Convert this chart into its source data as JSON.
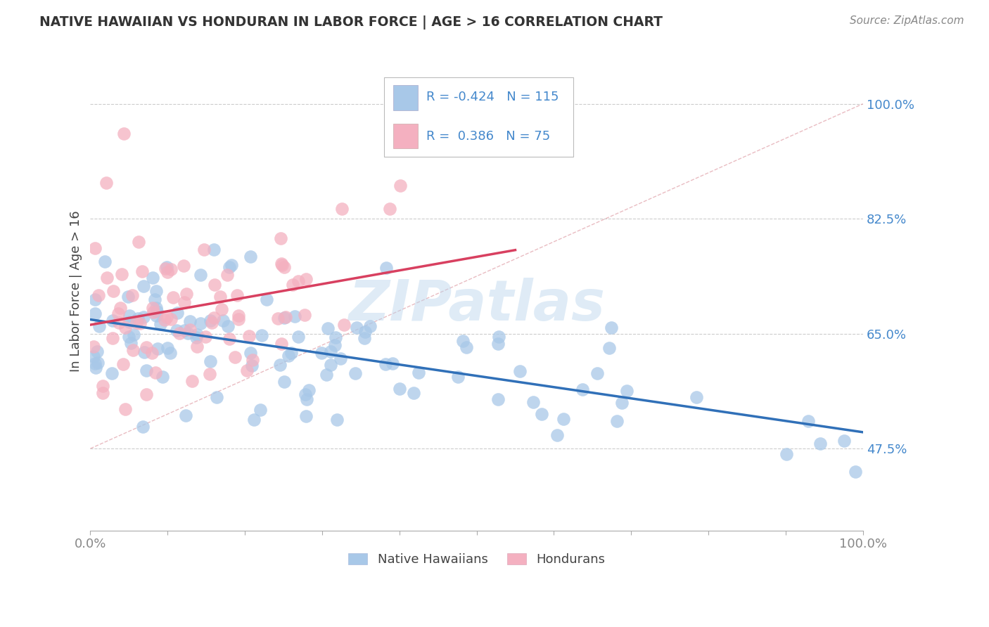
{
  "title": "NATIVE HAWAIIAN VS HONDURAN IN LABOR FORCE | AGE > 16 CORRELATION CHART",
  "source": "Source: ZipAtlas.com",
  "ylabel": "In Labor Force | Age > 16",
  "ytick_values": [
    0.475,
    0.65,
    0.825,
    1.0
  ],
  "ytick_labels": [
    "47.5%",
    "65.0%",
    "82.5%",
    "100.0%"
  ],
  "xlim": [
    0.0,
    1.0
  ],
  "ylim": [
    0.35,
    1.08
  ],
  "blue_R": -0.424,
  "blue_N": 115,
  "pink_R": 0.386,
  "pink_N": 75,
  "blue_scatter_color": "#a8c8e8",
  "pink_scatter_color": "#f4b0c0",
  "blue_line_color": "#3070b8",
  "pink_line_color": "#d84060",
  "diagonal_line_color": "#e08090",
  "watermark": "ZIPatlas",
  "legend_label_blue": "Native Hawaiians",
  "legend_label_pink": "Hondurans",
  "background_color": "#ffffff",
  "grid_color": "#cccccc",
  "title_color": "#333333",
  "source_color": "#888888",
  "ylabel_color": "#444444",
  "ytick_color": "#4488cc",
  "xtick_color": "#888888"
}
